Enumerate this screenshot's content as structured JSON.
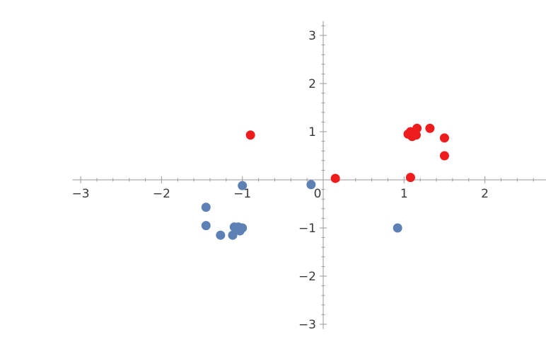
{
  "chart_data": {
    "type": "scatter",
    "title": "",
    "xlabel": "",
    "ylabel": "",
    "xlim": [
      -3.1,
      3.15
    ],
    "ylim": [
      -3.1,
      3.3
    ],
    "grid": false,
    "axes_origin": [
      0,
      0
    ],
    "x_ticks": [
      {
        "value": -3,
        "label": "−3"
      },
      {
        "value": -2,
        "label": "−2"
      },
      {
        "value": -1,
        "label": "−1"
      },
      {
        "value": 0,
        "label": "0"
      },
      {
        "value": 1,
        "label": "1"
      },
      {
        "value": 2,
        "label": "2"
      },
      {
        "value": 3,
        "label": "3"
      }
    ],
    "y_ticks": [
      {
        "value": 3,
        "label": "3"
      },
      {
        "value": 2,
        "label": "2"
      },
      {
        "value": 1,
        "label": "1"
      },
      {
        "value": -1,
        "label": "−1"
      },
      {
        "value": -2,
        "label": "−2"
      },
      {
        "value": -3,
        "label": "−3"
      }
    ],
    "series": [
      {
        "color": "#5e81b5",
        "points": [
          {
            "x": -1.45,
            "y": -0.57
          },
          {
            "x": -1.45,
            "y": -0.95
          },
          {
            "x": -1.27,
            "y": -1.15
          },
          {
            "x": -1.12,
            "y": -1.15
          },
          {
            "x": -1.1,
            "y": -0.98
          },
          {
            "x": -1.05,
            "y": -0.98
          },
          {
            "x": -1.03,
            "y": -1.06
          },
          {
            "x": -1.02,
            "y": -1.0
          },
          {
            "x": -1.0,
            "y": -1.0
          },
          {
            "x": -1.0,
            "y": -0.12
          },
          {
            "x": -0.15,
            "y": -0.1
          },
          {
            "x": 0.92,
            "y": -1.0
          }
        ]
      },
      {
        "color": "#ee1c1c",
        "points": [
          {
            "x": -0.9,
            "y": 0.93
          },
          {
            "x": 0.15,
            "y": 0.03
          },
          {
            "x": 1.05,
            "y": 0.95
          },
          {
            "x": 1.08,
            "y": 1.0
          },
          {
            "x": 1.1,
            "y": 0.9
          },
          {
            "x": 1.12,
            "y": 0.97
          },
          {
            "x": 1.15,
            "y": 0.93
          },
          {
            "x": 1.16,
            "y": 1.07
          },
          {
            "x": 1.32,
            "y": 1.07
          },
          {
            "x": 1.5,
            "y": 0.87
          },
          {
            "x": 1.5,
            "y": 0.5
          },
          {
            "x": 1.08,
            "y": 0.05
          }
        ]
      }
    ]
  }
}
